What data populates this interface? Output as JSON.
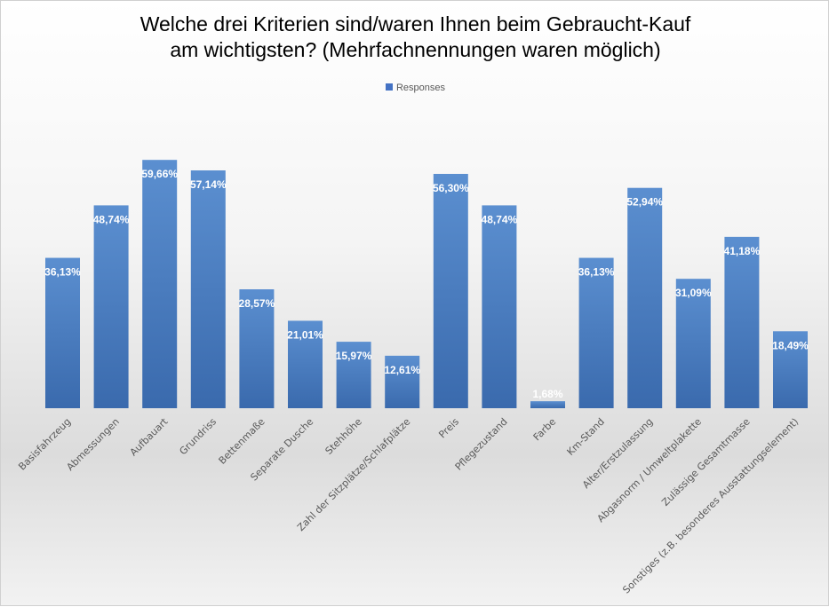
{
  "chart_data": {
    "type": "bar",
    "title": "Welche drei Kriterien sind/waren Ihnen beim Gebraucht-Kauf am wichtigsten? (Mehrfachnennungen waren möglich)",
    "title_lines": [
      "Welche drei Kriterien sind/waren Ihnen beim Gebraucht-Kauf",
      "am wichtigsten? (Mehrfachnennungen waren möglich)"
    ],
    "categories": [
      "Basisfahrzeug",
      "Abmessungen",
      "Aufbauart",
      "Grundriss",
      "Bettenmaße",
      "Separate Dusche",
      "Stehhöhe",
      "Zahl der Sitzplätze/Schlafplätze",
      "Preis",
      "Pflegezustand",
      "Farbe",
      "Km-Stand",
      "Alter/Erstzulassung",
      "Abgasnorm / Umweltplakette",
      "Zulässige Gesamtmasse",
      "Sonstiges (z.B. besonderes Ausstattungselement)"
    ],
    "series": [
      {
        "name": "Responses",
        "values": [
          36.13,
          48.74,
          59.66,
          57.14,
          28.57,
          21.01,
          15.97,
          12.61,
          56.3,
          48.74,
          1.68,
          36.13,
          52.94,
          31.09,
          41.18,
          18.49
        ]
      }
    ],
    "data_labels": [
      "36,13%",
      "48,74%",
      "59,66%",
      "57,14%",
      "28,57%",
      "21,01%",
      "15,97%",
      "12,61%",
      "56,30%",
      "48,74%",
      "1,68%",
      "36,13%",
      "52,94%",
      "31,09%",
      "41,18%",
      "18,49%"
    ],
    "ylim": [
      0,
      60
    ],
    "grid": false,
    "legend": "top",
    "color": "#4472c4"
  }
}
